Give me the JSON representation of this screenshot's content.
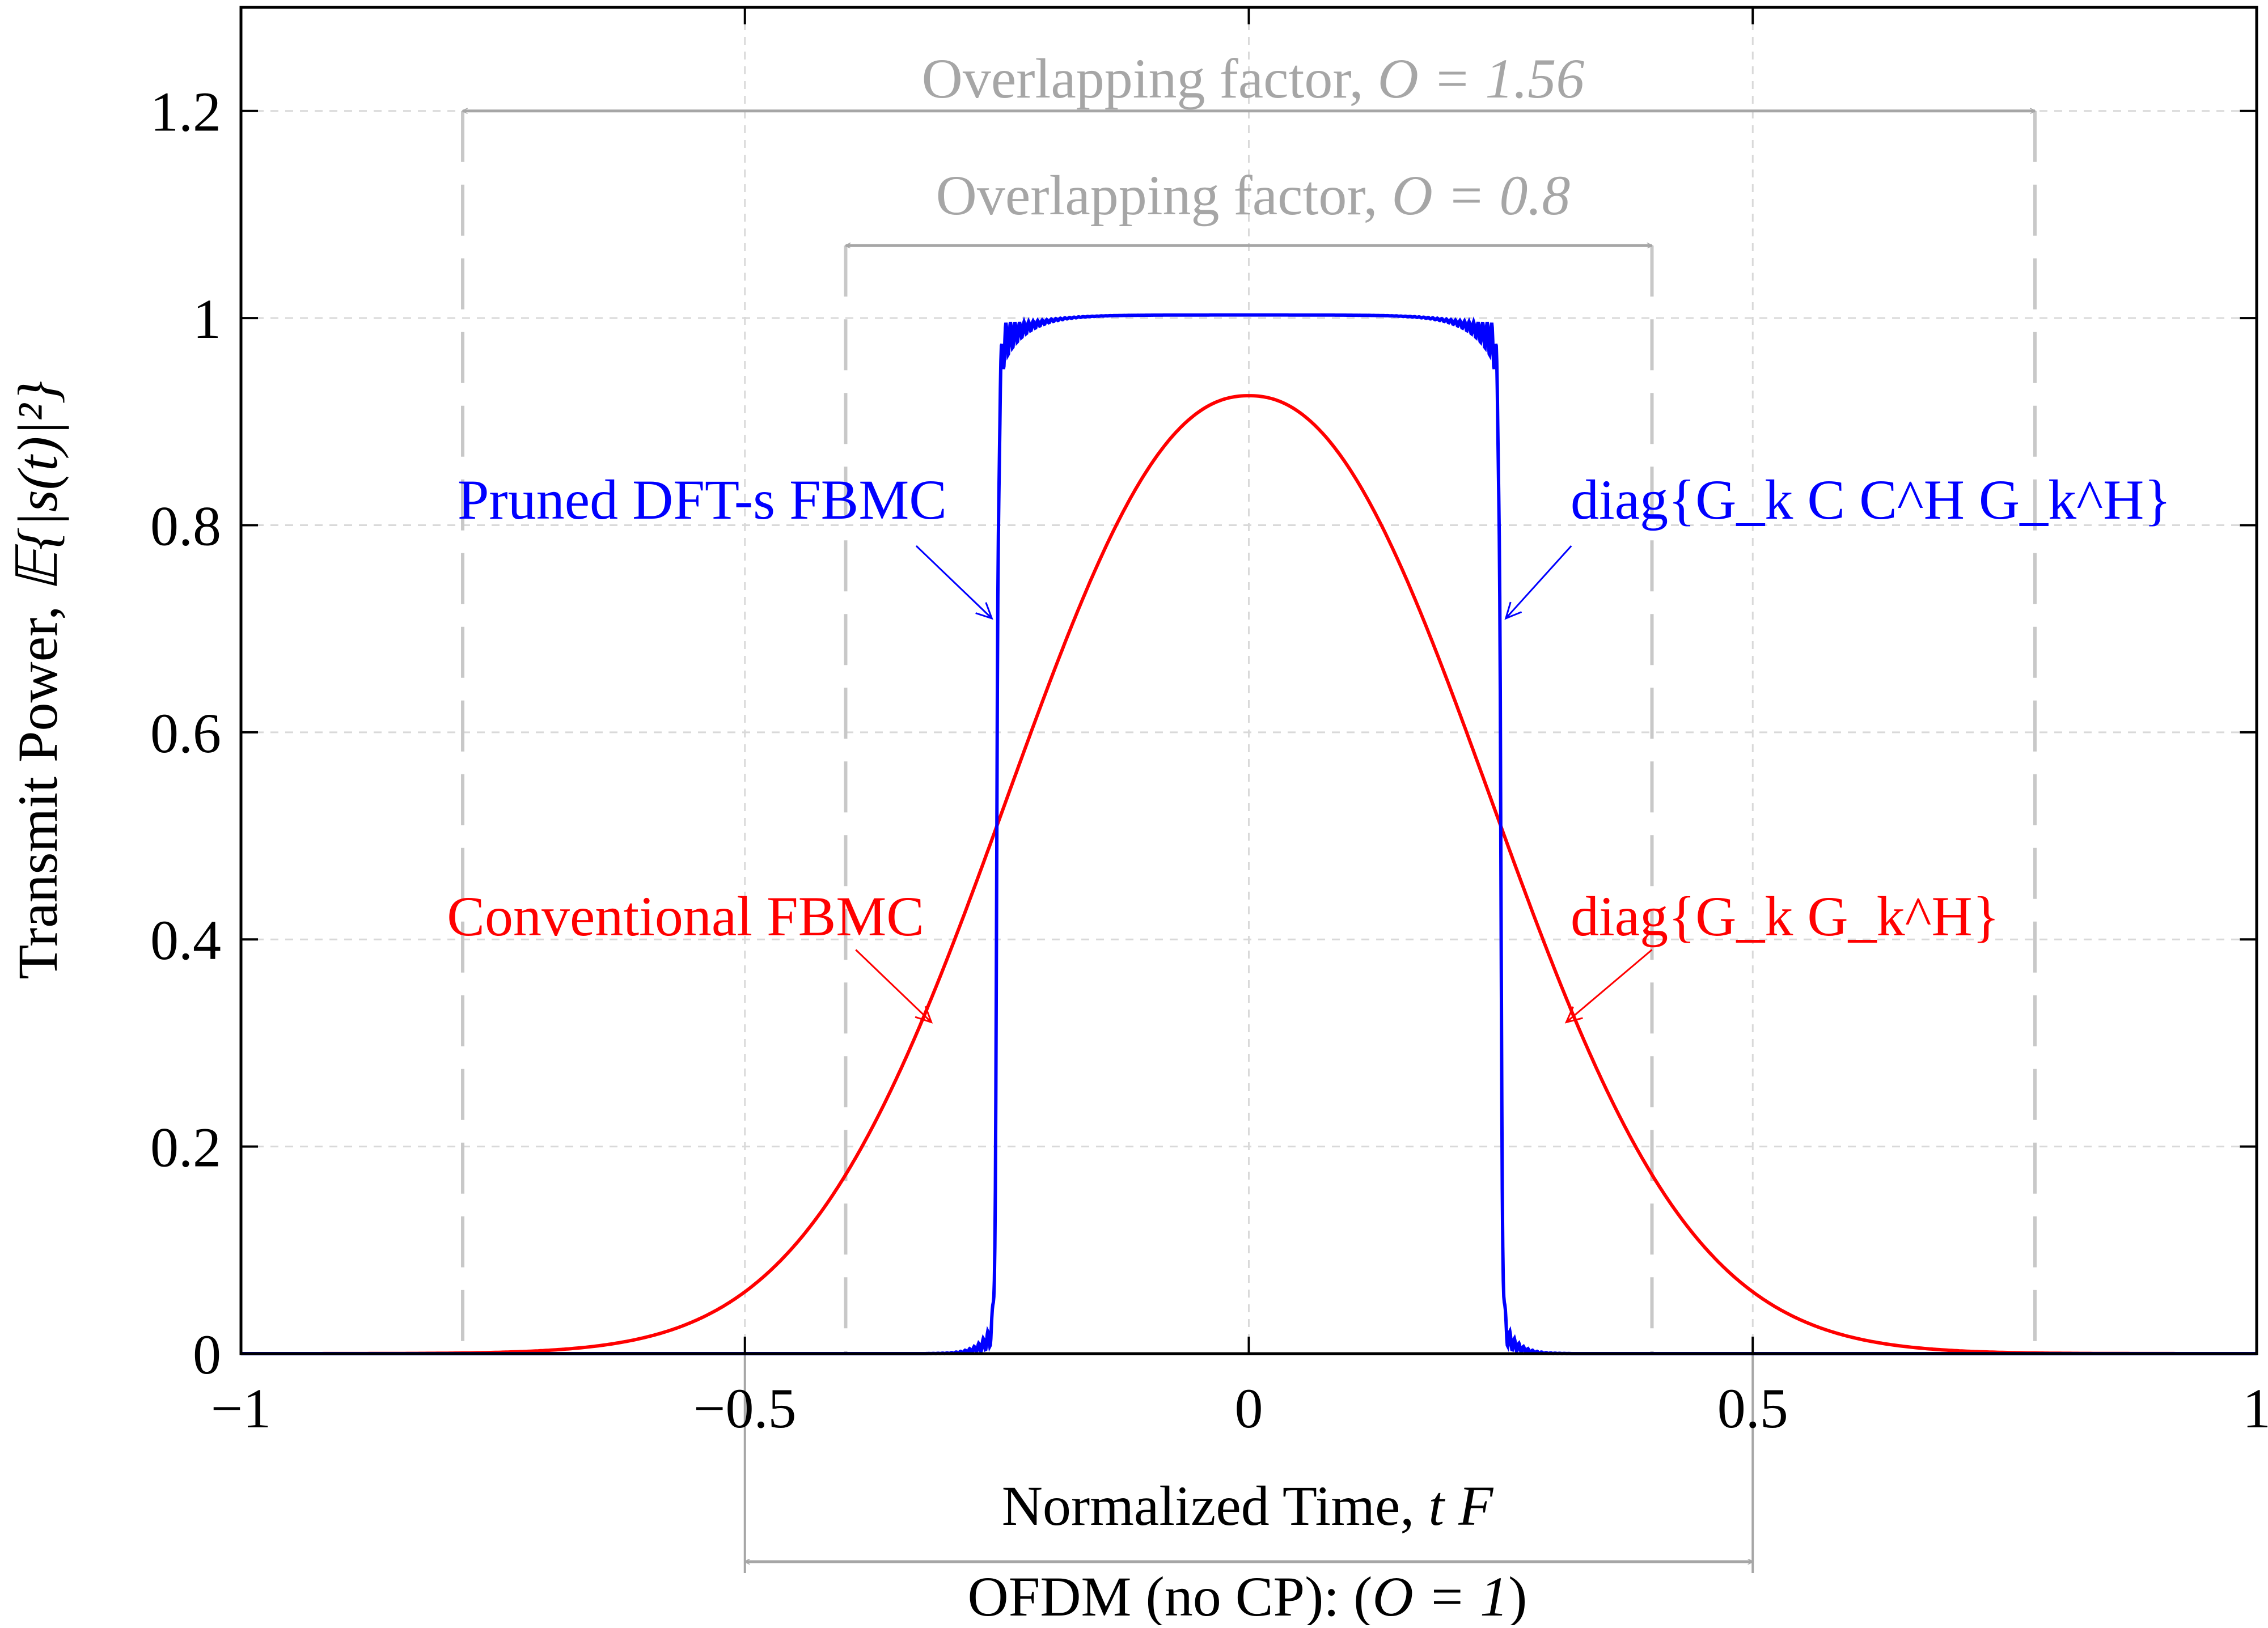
{
  "chart_data": {
    "type": "line",
    "title": "",
    "xlabel_text": "Normalized Time, ",
    "xlabel_var": "t F",
    "ylabel_text": "Transmit Power, ",
    "ylabel_math": "𝔼{|s(t)|²}",
    "xlim": [
      -1,
      1
    ],
    "ylim": [
      0,
      1.3
    ],
    "x_ticks": [
      -1,
      -0.5,
      0,
      0.5,
      1
    ],
    "y_ticks": [
      0,
      0.2,
      0.4,
      0.6,
      0.8,
      1,
      1.2
    ],
    "x_tick_labels": [
      "−1",
      "−0.5",
      "0",
      "0.5",
      "1"
    ],
    "y_tick_labels": [
      "0",
      "0.2",
      "0.4",
      "0.6",
      "0.8",
      "1",
      "1.2"
    ],
    "grid": true,
    "colors": {
      "pruned": "#0000ff",
      "conventional": "#ff0000",
      "annotation": "#a6a6a6",
      "markers": "#c8c8c8",
      "grid": "#d9d9d9"
    },
    "series": [
      {
        "name": "Pruned DFT-s FBMC",
        "description": "diag{G_k C C^H G_k^H}",
        "model": "flat-top pulse ≈1 on [-0.25, 0.25] with ripple near edges, ≈0 outside",
        "x": [
          -1,
          -0.3,
          -0.27,
          -0.26,
          -0.255,
          -0.25,
          -0.245,
          -0.24,
          -0.23,
          -0.2,
          -0.1,
          0,
          0.1,
          0.2,
          0.23,
          0.24,
          0.245,
          0.25,
          0.255,
          0.26,
          0.27,
          0.3,
          1
        ],
        "y": [
          0,
          0,
          0.02,
          0.06,
          0.25,
          0.5,
          0.75,
          0.97,
          0.99,
          1.0,
          1.003,
          1.003,
          1.003,
          1.0,
          0.99,
          0.97,
          0.75,
          0.5,
          0.25,
          0.06,
          0.02,
          0,
          0
        ]
      },
      {
        "name": "Conventional FBMC",
        "description": "diag{G_k G_k^H}",
        "model": "bell-shaped, peak ≈0.925 at t=0, ≈0.5 at t=±0.25",
        "x": [
          -1,
          -0.7,
          -0.6,
          -0.5,
          -0.4,
          -0.3,
          -0.25,
          -0.2,
          -0.1,
          0,
          0.1,
          0.2,
          0.25,
          0.3,
          0.4,
          0.5,
          0.6,
          0.7,
          1
        ],
        "y": [
          0,
          0.002,
          0.01,
          0.04,
          0.14,
          0.36,
          0.5,
          0.64,
          0.85,
          0.925,
          0.85,
          0.64,
          0.5,
          0.36,
          0.14,
          0.04,
          0.01,
          0.002,
          0
        ]
      }
    ],
    "overlap_markers": [
      {
        "text": "Overlapping factor, ",
        "math": "O = 1.56",
        "x_from": -0.78,
        "x_to": 0.78,
        "arrow_y": 1.2,
        "label_y": 1.215,
        "placement": "above plot, top"
      },
      {
        "text": "Overlapping factor, ",
        "math": "O = 0.8",
        "x_from": -0.4,
        "x_to": 0.4,
        "arrow_y": 1.07,
        "label_y": 1.1,
        "placement": "above plot, middle"
      },
      {
        "text": "OFDM (no CP): (",
        "math": "O = 1",
        "text_end": ")",
        "x_from": -0.5,
        "x_to": 0.5,
        "placement": "below x-axis"
      }
    ],
    "annotations": [
      {
        "name": "Pruned DFT-s FBMC",
        "color": "#0000ff",
        "text_x": -0.3,
        "text_y": 0.8,
        "pointer_from_x": -0.33,
        "pointer_from_y": 0.78,
        "pointer_to_x": -0.255,
        "pointer_to_y": 0.71,
        "anchor": "end"
      },
      {
        "math": "diag{G_k C C^H G_k^H}",
        "color": "#0000ff",
        "text_x": 0.32,
        "text_y": 0.8,
        "pointer_from_x": 0.32,
        "pointer_from_y": 0.78,
        "pointer_to_x": 0.255,
        "pointer_to_y": 0.71,
        "anchor": "start"
      },
      {
        "name": "Conventional FBMC",
        "color": "#ff0000",
        "text_x": -0.32,
        "text_y": 0.4,
        "pointer_from_x": -0.39,
        "pointer_from_y": 0.39,
        "pointer_to_x": -0.315,
        "pointer_to_y": 0.32,
        "anchor": "end"
      },
      {
        "math": "diag{G_k G_k^H}",
        "color": "#ff0000",
        "text_x": 0.32,
        "text_y": 0.4,
        "pointer_from_x": 0.4,
        "pointer_from_y": 0.39,
        "pointer_to_x": 0.315,
        "pointer_to_y": 0.32,
        "anchor": "start"
      }
    ]
  }
}
